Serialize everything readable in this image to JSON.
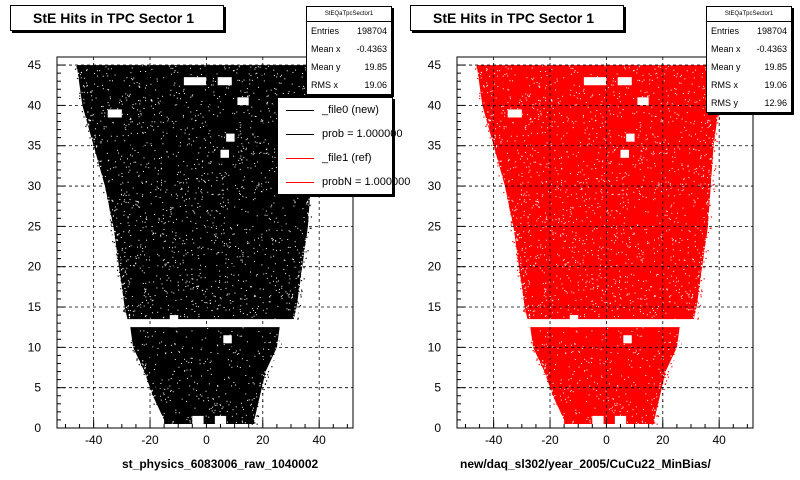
{
  "chart_data": [
    {
      "type": "scatter",
      "title": "StE Hits in TPC Sector 1",
      "xlabel": "st_physics_6083006_raw_1040002",
      "ylabel": "",
      "xlim": [
        -53,
        52
      ],
      "ylim": [
        0,
        46
      ],
      "xticks": [
        -40,
        -20,
        0,
        20,
        40
      ],
      "yticks": [
        0,
        5,
        10,
        15,
        20,
        25,
        30,
        35,
        40,
        45
      ],
      "grid": true,
      "marker_color": "#000000",
      "stats": {
        "name": "StEQaTpcSector1",
        "rows": [
          {
            "label": "Entries",
            "value": "198704"
          },
          {
            "label": "Mean x",
            "value": "-0.4363"
          },
          {
            "label": "Mean y",
            "value": "19.85"
          },
          {
            "label": "RMS x",
            "value": "19.06"
          }
        ]
      },
      "legend": {
        "placement": "top-right",
        "entries": [
          {
            "label": "_file0 (new)",
            "color": "#000000"
          },
          {
            "label": "prob = 1.000000",
            "color": "#000000"
          },
          {
            "label": "_file1 (ref)",
            "color": "#ff0000"
          },
          {
            "label": "probN = 1.000000",
            "color": "#ff0000"
          }
        ]
      }
    },
    {
      "type": "scatter",
      "title": "StE Hits in TPC Sector 1",
      "xlabel": "new/daq_sl302/year_2005/CuCu22_MinBias/",
      "ylabel": "",
      "xlim": [
        -53,
        52
      ],
      "ylim": [
        0,
        46
      ],
      "xticks": [
        -40,
        -20,
        0,
        20,
        40
      ],
      "yticks": [
        0,
        5,
        10,
        15,
        20,
        25,
        30,
        35,
        40,
        45
      ],
      "grid": true,
      "marker_color": "#ff0000",
      "stats": {
        "name": "StEQaTpcSector1",
        "rows": [
          {
            "label": "Entries",
            "value": "198704"
          },
          {
            "label": "Mean x",
            "value": "-0.4363"
          },
          {
            "label": "Mean y",
            "value": "19.85"
          },
          {
            "label": "RMS x",
            "value": "19.06"
          },
          {
            "label": "RMS y",
            "value": "12.96"
          }
        ]
      }
    }
  ]
}
